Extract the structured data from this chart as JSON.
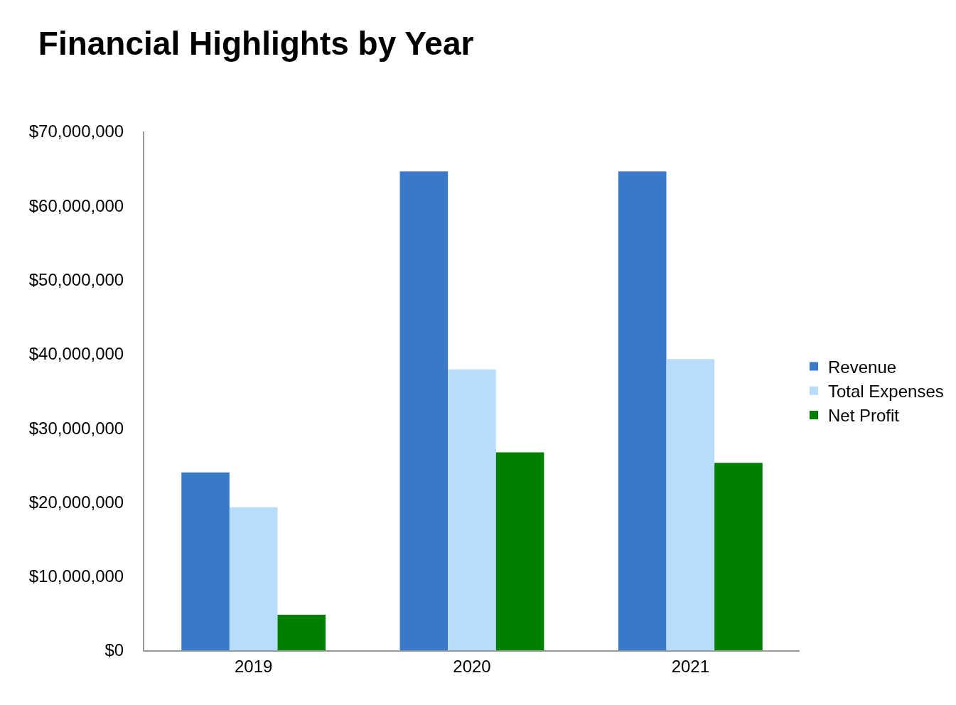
{
  "chart_data": {
    "type": "bar",
    "title": "Financial Highlights by Year",
    "categories": [
      "2019",
      "2020",
      "2021"
    ],
    "series": [
      {
        "name": "Revenue",
        "color": "#3879c8",
        "values": [
          24000000,
          64600000,
          64600000
        ]
      },
      {
        "name": "Total Expenses",
        "color": "#b8dcfb",
        "values": [
          19300000,
          37900000,
          39300000
        ]
      },
      {
        "name": "Net Profit",
        "color": "#008000",
        "values": [
          4800000,
          26700000,
          25300000
        ]
      }
    ],
    "ylim": [
      0,
      70000000
    ],
    "yticks": [
      {
        "value": 0,
        "label": "$0"
      },
      {
        "value": 10000000,
        "label": "$10,000,000"
      },
      {
        "value": 20000000,
        "label": "$20,000,000"
      },
      {
        "value": 30000000,
        "label": "$30,000,000"
      },
      {
        "value": 40000000,
        "label": "$40,000,000"
      },
      {
        "value": 50000000,
        "label": "$50,000,000"
      },
      {
        "value": 60000000,
        "label": "$60,000,000"
      },
      {
        "value": 70000000,
        "label": "$70,000,000"
      }
    ],
    "grid": false,
    "legend": "right"
  }
}
